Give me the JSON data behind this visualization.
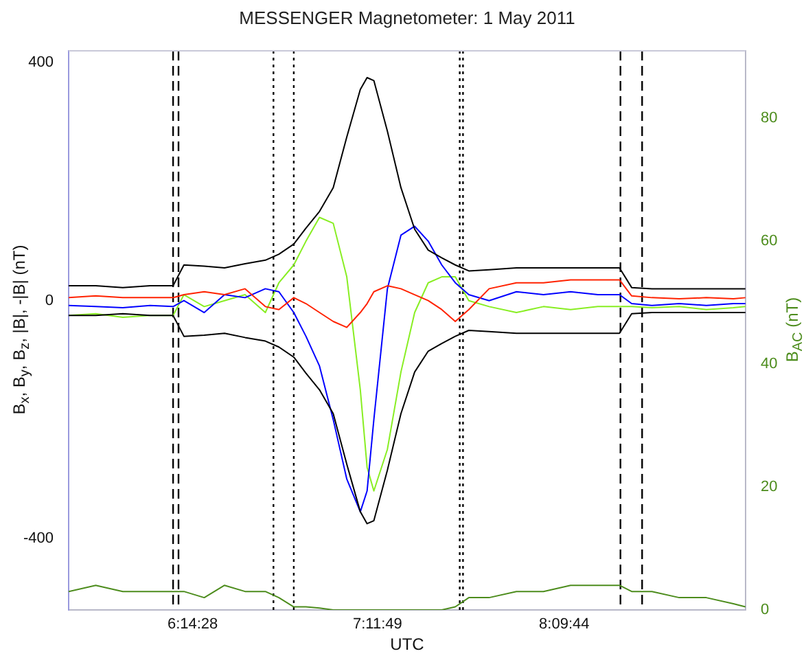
{
  "chart_data": {
    "type": "line",
    "title": "MESSENGER Magnetometer: 1 May 2011",
    "xlabel": "UTC",
    "ylabel": "B$_{x}$, B$_{y}$, B$_{z}$, |B|, -|B| (nT)",
    "y2label": "B$_{AC}$ (nT)",
    "marker": "none",
    "x": [
      5.6,
      5.74,
      5.88,
      6.021,
      6.14,
      6.196,
      6.301,
      6.406,
      6.512,
      6.617,
      6.687,
      6.764,
      6.827,
      6.897,
      6.968,
      7.038,
      7.108,
      7.143,
      7.178,
      7.248,
      7.318,
      7.389,
      7.459,
      7.529,
      7.599,
      7.669,
      7.774,
      7.915,
      8.055,
      8.195,
      8.336,
      8.448,
      8.511,
      8.616,
      8.757,
      8.897,
      9.037,
      9.099
    ],
    "xlim": [
      5.6,
      9.1
    ],
    "xticks": [
      {
        "value": 6.2411,
        "label": "6:14:28"
      },
      {
        "value": 7.1969,
        "label": "7:11:49"
      },
      {
        "value": 8.1622,
        "label": "8:09:44"
      }
    ],
    "ylim": [
      -520,
      420
    ],
    "yticks": [
      -400,
      0,
      400
    ],
    "y2lim": [
      0,
      91
    ],
    "y2ticks": [
      0,
      20,
      40,
      60,
      80
    ],
    "series": [
      {
        "color": "#000000",
        "values": [
          25,
          25,
          22,
          25,
          25,
          60,
          58,
          55,
          62,
          68,
          78,
          95,
          122,
          150,
          190,
          275,
          355,
          375,
          370,
          285,
          190,
          120,
          85,
          72,
          60,
          50,
          52,
          55,
          55,
          55,
          55,
          55,
          22,
          20,
          20,
          20,
          20,
          20
        ]
      },
      {
        "color": "#000000",
        "values": [
          -25,
          -25,
          -22,
          -25,
          -25,
          -60,
          -58,
          -55,
          -62,
          -68,
          -78,
          -95,
          -122,
          -150,
          -190,
          -275,
          -355,
          -375,
          -370,
          -285,
          -190,
          -120,
          -85,
          -72,
          -60,
          -50,
          -52,
          -55,
          -55,
          -55,
          -55,
          -55,
          -22,
          -20,
          -20,
          -20,
          -20,
          -20
        ]
      },
      {
        "color": "#ff2200",
        "values": [
          5,
          8,
          5,
          5,
          5,
          10,
          15,
          10,
          20,
          -10,
          -15,
          5,
          -5,
          -20,
          -35,
          -45,
          -20,
          -5,
          15,
          25,
          20,
          10,
          0,
          -15,
          -35,
          -15,
          20,
          30,
          30,
          35,
          35,
          35,
          8,
          5,
          3,
          5,
          3,
          5
        ]
      },
      {
        "color": "#0000ff",
        "values": [
          -8,
          -10,
          -12,
          -8,
          -10,
          0,
          -20,
          10,
          5,
          20,
          15,
          -20,
          -60,
          -110,
          -200,
          -300,
          -355,
          -320,
          -200,
          20,
          110,
          125,
          100,
          60,
          30,
          10,
          0,
          15,
          10,
          15,
          10,
          10,
          -5,
          -8,
          -5,
          -8,
          -5,
          -5
        ]
      },
      {
        "color": "#88ee22",
        "values": [
          -25,
          -22,
          -28,
          -25,
          -25,
          10,
          -10,
          0,
          10,
          -20,
          30,
          60,
          100,
          140,
          130,
          40,
          -150,
          -280,
          -320,
          -250,
          -120,
          -20,
          30,
          40,
          40,
          0,
          -10,
          -20,
          -10,
          -15,
          -10,
          -10,
          -10,
          -12,
          -10,
          -15,
          -12,
          -10
        ]
      },
      {
        "color": "#4c8c1c",
        "axis": "y2",
        "values": [
          3,
          4,
          3,
          3,
          3,
          3,
          2,
          4,
          3,
          3,
          2,
          0.5,
          0.5,
          0.3,
          0,
          0,
          0,
          0,
          0,
          0,
          0,
          0,
          0,
          0,
          0.5,
          2,
          2,
          3,
          3,
          4,
          4,
          4,
          3,
          3,
          2,
          2,
          1,
          0.5
        ]
      }
    ],
    "ref_lines": [
      {
        "axis": "x",
        "value": 6.14,
        "color": "#000000",
        "line_style": "dashed"
      },
      {
        "axis": "x",
        "value": 6.168,
        "color": "#000000",
        "line_style": "dashed"
      },
      {
        "axis": "x",
        "value": 6.659,
        "color": "#000000",
        "line_style": "dotted"
      },
      {
        "axis": "x",
        "value": 6.764,
        "color": "#000000",
        "line_style": "dotted"
      },
      {
        "axis": "x",
        "value": 7.622,
        "color": "#000000",
        "line_style": "dotted"
      },
      {
        "axis": "x",
        "value": 7.639,
        "color": "#000000",
        "line_style": "dotted"
      },
      {
        "axis": "x",
        "value": 8.453,
        "color": "#000000",
        "line_style": "dashed"
      },
      {
        "axis": "x",
        "value": 8.565,
        "color": "#000000",
        "line_style": "dashed"
      }
    ]
  }
}
